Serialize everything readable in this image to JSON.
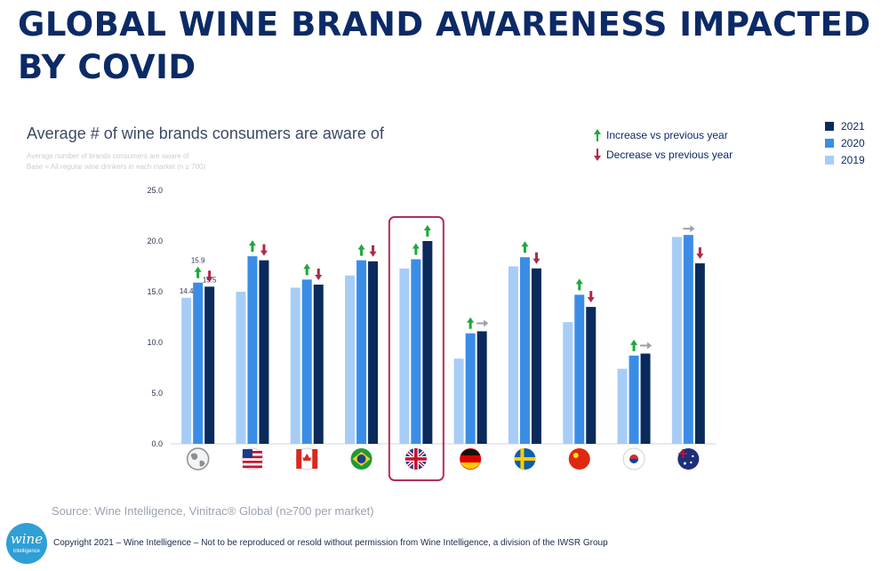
{
  "title": "GLOBAL WINE BRAND AWARENESS IMPACTED BY COVID",
  "subtitle": "Average # of wine brands consumers are aware of",
  "base_note_line1": "Average number of brands consumers are aware of",
  "base_note_line2": "Base = All  regular wine drinkers in each market (n ≥ 700)",
  "indicator_legend": {
    "increase": "Increase vs previous year",
    "decrease": "Decrease vs previous year"
  },
  "year_legend": [
    {
      "label": "2021",
      "color": "#0b2a5c"
    },
    {
      "label": "2020",
      "color": "#3a8de6"
    },
    {
      "label": "2019",
      "color": "#a7cdf7"
    }
  ],
  "source": "Source: Wine Intelligence, Vinitrac® Global (n≥700 per market)",
  "copyright": "Copyright 2021 – Wine Intelligence – Not to be reproduced or resold without permission from Wine Intelligence, a division of the IWSR Group",
  "logo": {
    "word": "wine",
    "sub": "intelligence"
  },
  "chart_data": {
    "type": "bar",
    "categories": [
      "globe-icon",
      "usa-flag",
      "canada-flag",
      "brazil-flag",
      "uk-flag",
      "germany-flag",
      "sweden-flag",
      "china-flag",
      "south-korea-flag",
      "australia-flag"
    ],
    "ylim": [
      0,
      25
    ],
    "yticks": [
      "0.0",
      "5.0",
      "10.0",
      "15.0",
      "20.0",
      "25.0"
    ],
    "grid": false,
    "legend": "top-right",
    "highlight_category": "uk-flag",
    "series": [
      {
        "name": "2019",
        "color": "#a7cdf7",
        "values": [
          14.4,
          15.0,
          15.4,
          16.6,
          17.3,
          8.4,
          17.5,
          12.0,
          7.4,
          20.4
        ]
      },
      {
        "name": "2020",
        "color": "#3a8de6",
        "values": [
          15.9,
          18.5,
          16.2,
          18.1,
          18.2,
          10.9,
          18.4,
          14.7,
          8.7,
          20.6
        ]
      },
      {
        "name": "2021",
        "color": "#0b2a5c",
        "values": [
          15.5,
          18.1,
          15.7,
          18.0,
          20.0,
          11.1,
          17.3,
          13.5,
          8.9,
          17.8
        ]
      }
    ],
    "change_vs_previous_year": [
      [
        "up",
        "down"
      ],
      [
        "up",
        "down"
      ],
      [
        "up",
        "down"
      ],
      [
        "up",
        "down"
      ],
      [
        "up",
        "up"
      ],
      [
        "up",
        "flat"
      ],
      [
        "up",
        "down"
      ],
      [
        "up",
        "down"
      ],
      [
        "up",
        "flat"
      ],
      [
        "none",
        "flat-down"
      ]
    ],
    "data_labels": {
      "category": "globe-icon",
      "values": [
        "14.4",
        "15.9",
        "15.5"
      ]
    }
  }
}
